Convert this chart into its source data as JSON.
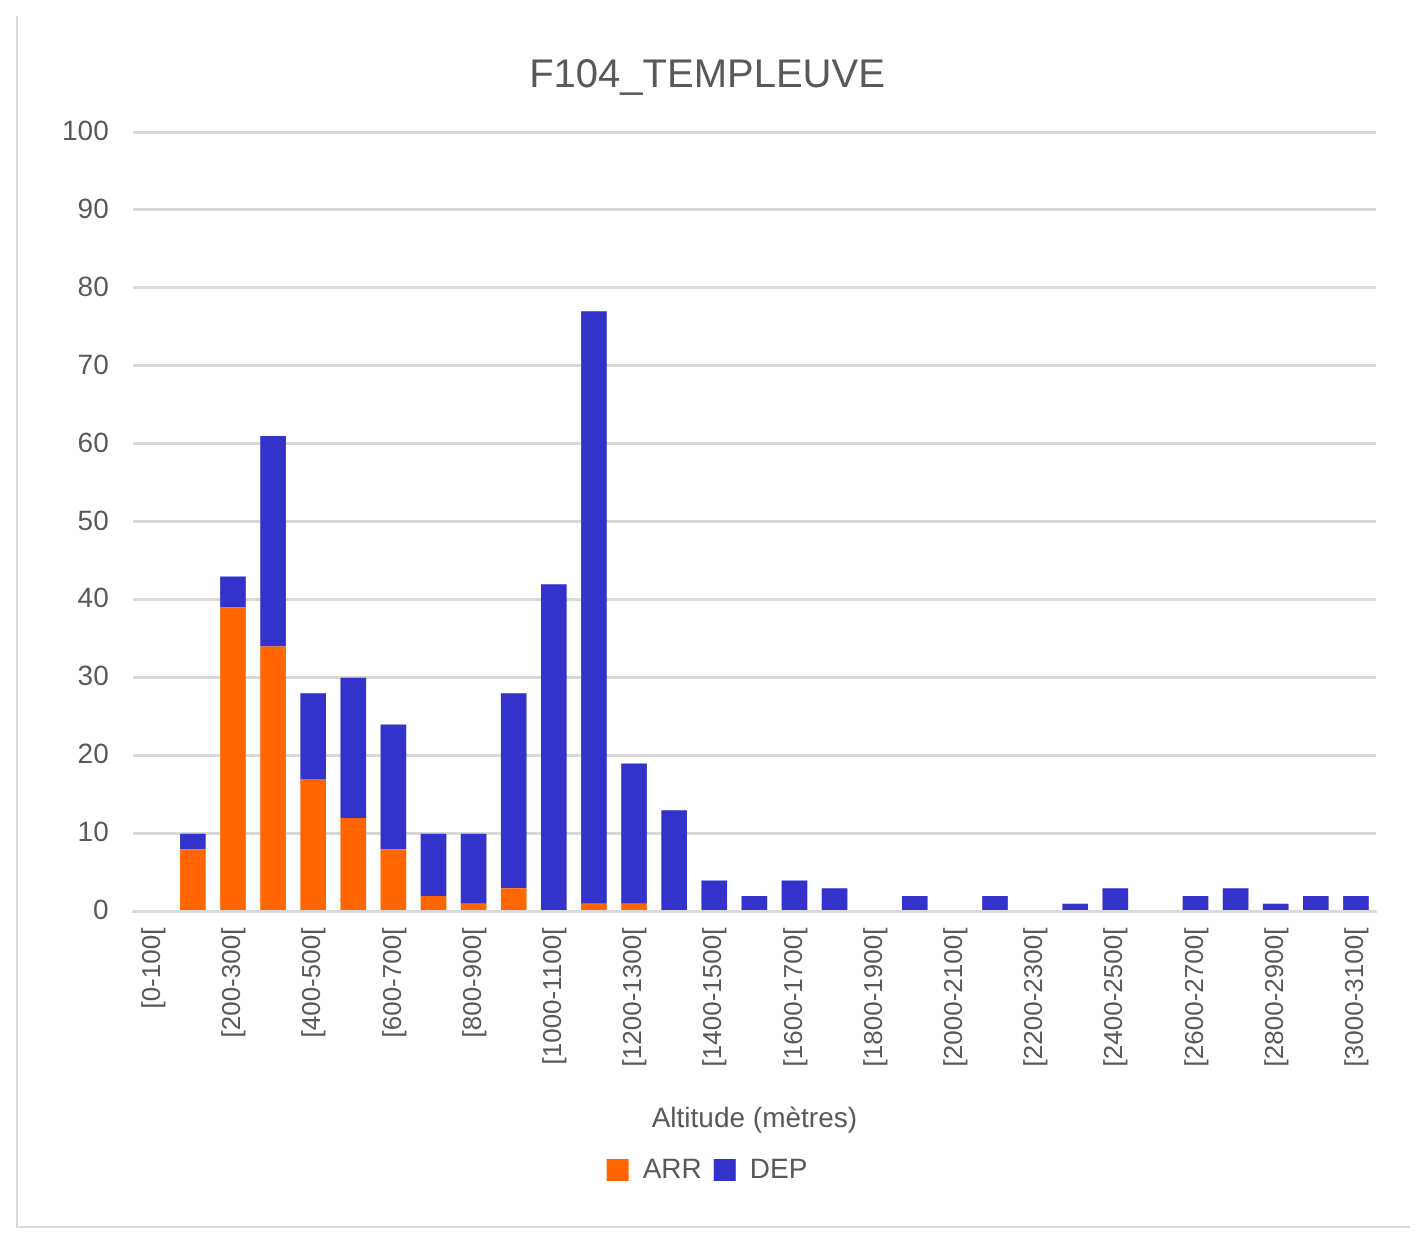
{
  "chart_data": {
    "type": "bar",
    "title": "F104_TEMPLEUVE",
    "xlabel": "Altitude (mètres)",
    "categories": [
      "[0-100[",
      null,
      "[200-300[",
      null,
      "[400-500[",
      null,
      "[600-700[",
      null,
      "[800-900[",
      null,
      "[1000-1100[",
      null,
      "[1200-1300[",
      null,
      "[1400-1500[",
      null,
      "[1600-1700[",
      null,
      "[1800-1900[",
      null,
      "[2000-2100[",
      null,
      "[2200-2300[",
      null,
      "[2400-2500[",
      null,
      "[2600-2700[",
      null,
      "[2800-2900[",
      null,
      "[3000-3100["
    ],
    "series": [
      {
        "name": "ARR",
        "color": "#ff6600",
        "values": [
          0,
          8,
          39,
          34,
          17,
          12,
          8,
          2,
          1,
          3,
          0,
          1,
          1,
          0,
          0,
          0,
          0,
          0,
          0,
          0,
          0,
          0,
          0,
          0,
          0,
          0,
          0,
          0,
          0,
          0,
          0
        ]
      },
      {
        "name": "DEP",
        "color": "#3333cc",
        "values": [
          0,
          2,
          4,
          27,
          11,
          18,
          16,
          8,
          9,
          25,
          42,
          76,
          18,
          13,
          4,
          2,
          4,
          3,
          0,
          2,
          0,
          2,
          0,
          1,
          3,
          0,
          2,
          3,
          1,
          2,
          2
        ]
      }
    ],
    "stacked": true,
    "ylim": [
      0,
      100
    ],
    "yticks": [
      0,
      10,
      20,
      30,
      40,
      50,
      60,
      70,
      80,
      90,
      100
    ],
    "grid": "y",
    "legend": "bottom"
  }
}
